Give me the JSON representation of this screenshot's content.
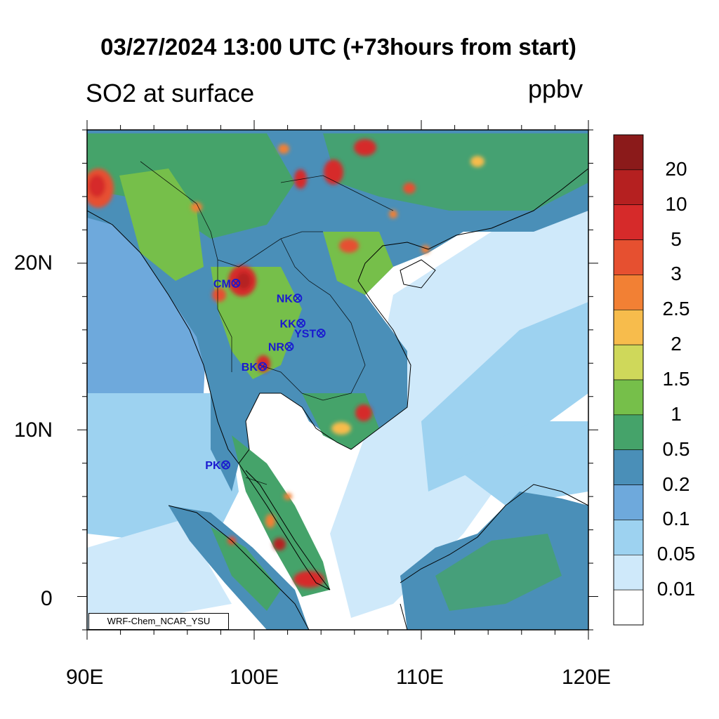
{
  "title": "03/27/2024 13:00 UTC (+73hours from start)",
  "left_subtitle": "SO2 at surface",
  "right_subtitle": "ppbv",
  "credit": "WRF-Chem_NCAR_YSU",
  "lat_labels": [
    "20N",
    "10N",
    "0"
  ],
  "lon_labels": [
    "90E",
    "100E",
    "110E",
    "120E"
  ],
  "colorbar": {
    "labels": [
      "20",
      "10",
      "5",
      "3",
      "2.5",
      "2",
      "1.5",
      "1",
      "0.5",
      "0.2",
      "0.1",
      "0.05",
      "0.01"
    ],
    "colors": [
      "#8b1a1a",
      "#b52020",
      "#d62a2a",
      "#e65030",
      "#f28034",
      "#f7bc4c",
      "#cfd85a",
      "#76bf4a",
      "#45a36a",
      "#4a8fb8",
      "#6ea9dc",
      "#9dd2f0",
      "#cfe9fa",
      "#ffffff"
    ]
  },
  "stations": [
    {
      "name": "CM",
      "lon": 98.9,
      "lat": 18.8
    },
    {
      "name": "NK",
      "lon": 102.6,
      "lat": 17.9
    },
    {
      "name": "KK",
      "lon": 102.8,
      "lat": 16.4
    },
    {
      "name": "YST",
      "lon": 104.0,
      "lat": 15.8
    },
    {
      "name": "NR",
      "lon": 102.1,
      "lat": 15.0
    },
    {
      "name": "BK",
      "lon": 100.5,
      "lat": 13.8
    },
    {
      "name": "PK",
      "lon": 98.3,
      "lat": 7.9
    }
  ],
  "map": {
    "lon_range": [
      90,
      120
    ],
    "lat_range": [
      -2,
      28
    ],
    "ocean_color": "#ffffff",
    "station_color": "#1a1ad0"
  }
}
